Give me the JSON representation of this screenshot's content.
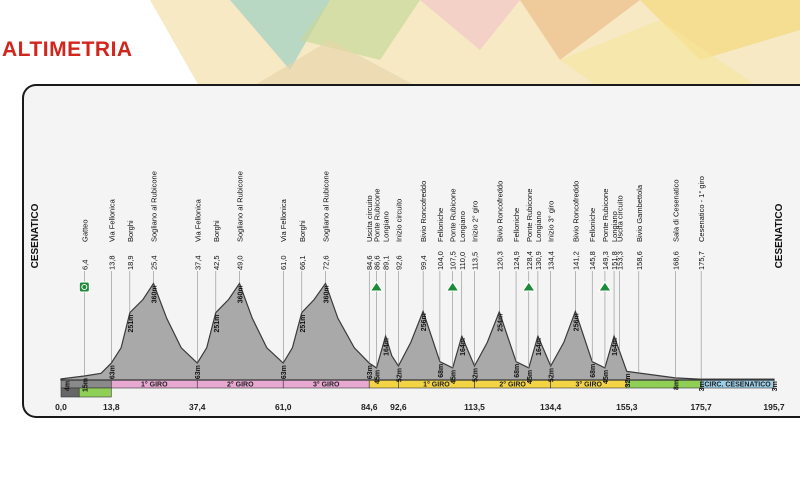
{
  "header": {
    "title": "ALTIMETRIA",
    "colors": {
      "title": "#d0261e",
      "panel_background": "#f4f4f4",
      "profile_fill": "#a9a9a9",
      "profile_stroke": "#3a3a3a"
    }
  },
  "chart_data": {
    "type": "area",
    "start_label": "CESENATICO",
    "end_label": "CESENATICO",
    "xlim": [
      0,
      195.7
    ],
    "km_axis_ticks": [
      {
        "km": 0,
        "label": "0,0"
      },
      {
        "km": 13.8,
        "label": "13,8"
      },
      {
        "km": 37.4,
        "label": "37,4"
      },
      {
        "km": 61.0,
        "label": "61,0"
      },
      {
        "km": 84.6,
        "label": "84,6"
      },
      {
        "km": 92.6,
        "label": "92,6"
      },
      {
        "km": 113.5,
        "label": "113,5"
      },
      {
        "km": 134.4,
        "label": "134,4"
      },
      {
        "km": 155.3,
        "label": "155,3"
      },
      {
        "km": 175.7,
        "label": "175,7"
      },
      {
        "km": 195.7,
        "label": "195,7"
      }
    ],
    "profile": [
      {
        "km": 0,
        "alt": 4
      },
      {
        "km": 6.4,
        "alt": 15
      },
      {
        "km": 11,
        "alt": 25
      },
      {
        "km": 13.8,
        "alt": 63
      },
      {
        "km": 16.5,
        "alt": 120
      },
      {
        "km": 18.9,
        "alt": 251
      },
      {
        "km": 22.5,
        "alt": 300
      },
      {
        "km": 25.4,
        "alt": 360
      },
      {
        "km": 29,
        "alt": 230
      },
      {
        "km": 33,
        "alt": 120
      },
      {
        "km": 37.4,
        "alt": 63
      },
      {
        "km": 40,
        "alt": 120
      },
      {
        "km": 42.5,
        "alt": 251
      },
      {
        "km": 46,
        "alt": 300
      },
      {
        "km": 49.0,
        "alt": 360
      },
      {
        "km": 52.5,
        "alt": 230
      },
      {
        "km": 56.5,
        "alt": 120
      },
      {
        "km": 61.0,
        "alt": 63
      },
      {
        "km": 63.5,
        "alt": 120
      },
      {
        "km": 66.1,
        "alt": 251
      },
      {
        "km": 69.5,
        "alt": 300
      },
      {
        "km": 72.6,
        "alt": 360
      },
      {
        "km": 76,
        "alt": 230
      },
      {
        "km": 80.5,
        "alt": 120
      },
      {
        "km": 84.6,
        "alt": 63
      },
      {
        "km": 86.6,
        "alt": 45
      },
      {
        "km": 89.1,
        "alt": 164
      },
      {
        "km": 90.8,
        "alt": 90
      },
      {
        "km": 92.6,
        "alt": 52
      },
      {
        "km": 96,
        "alt": 140
      },
      {
        "km": 99.4,
        "alt": 256
      },
      {
        "km": 104.0,
        "alt": 68
      },
      {
        "km": 107.5,
        "alt": 45
      },
      {
        "km": 110.0,
        "alt": 164
      },
      {
        "km": 113.5,
        "alt": 52
      },
      {
        "km": 117,
        "alt": 140
      },
      {
        "km": 120.3,
        "alt": 254
      },
      {
        "km": 124.9,
        "alt": 68
      },
      {
        "km": 128.4,
        "alt": 45
      },
      {
        "km": 130.9,
        "alt": 164
      },
      {
        "km": 134.4,
        "alt": 52
      },
      {
        "km": 138,
        "alt": 140
      },
      {
        "km": 141.2,
        "alt": 256
      },
      {
        "km": 145.8,
        "alt": 68
      },
      {
        "km": 149.3,
        "alt": 45
      },
      {
        "km": 151.8,
        "alt": 164
      },
      {
        "km": 155.3,
        "alt": 32
      },
      {
        "km": 168.6,
        "alt": 8
      },
      {
        "km": 175.7,
        "alt": 3
      },
      {
        "km": 195.7,
        "alt": 3
      }
    ],
    "altitude_labels": [
      {
        "km": 1.5,
        "label": "4m"
      },
      {
        "km": 6.4,
        "label": "15m"
      },
      {
        "km": 13.8,
        "label": "63m"
      },
      {
        "km": 18.9,
        "label": "251m"
      },
      {
        "km": 25.4,
        "label": "360m"
      },
      {
        "km": 37.4,
        "label": "63m"
      },
      {
        "km": 42.5,
        "label": "251m"
      },
      {
        "km": 49.0,
        "label": "360m"
      },
      {
        "km": 61.0,
        "label": "63m"
      },
      {
        "km": 66.1,
        "label": "251m"
      },
      {
        "km": 72.6,
        "label": "360m"
      },
      {
        "km": 84.6,
        "label": "63m"
      },
      {
        "km": 86.6,
        "label": "45m"
      },
      {
        "km": 89.1,
        "label": "164m"
      },
      {
        "km": 92.6,
        "label": "52m"
      },
      {
        "km": 99.4,
        "label": "256m"
      },
      {
        "km": 104.0,
        "label": "68m"
      },
      {
        "km": 107.5,
        "label": "45m"
      },
      {
        "km": 110.0,
        "label": "164m"
      },
      {
        "km": 113.5,
        "label": "52m"
      },
      {
        "km": 120.3,
        "label": "254m"
      },
      {
        "km": 124.9,
        "label": "68m"
      },
      {
        "km": 128.4,
        "label": "45m"
      },
      {
        "km": 130.9,
        "label": "164m"
      },
      {
        "km": 134.4,
        "label": "52m"
      },
      {
        "km": 141.2,
        "label": "256m"
      },
      {
        "km": 145.8,
        "label": "68m"
      },
      {
        "km": 149.3,
        "label": "45m"
      },
      {
        "km": 151.8,
        "label": "164m"
      },
      {
        "km": 155.3,
        "label": "32m"
      },
      {
        "km": 168.6,
        "label": "8m"
      },
      {
        "km": 175.7,
        "label": "3m"
      },
      {
        "km": 195.7,
        "label": "3m"
      }
    ],
    "waypoints": [
      {
        "km": 6.4,
        "km_label": "6,4",
        "name": "Gatteo"
      },
      {
        "km": 13.8,
        "km_label": "13,8",
        "name": "Via Fellonica"
      },
      {
        "km": 18.9,
        "km_label": "18,9",
        "name": "Borghi"
      },
      {
        "km": 25.4,
        "km_label": "25,4",
        "name": "Sogliano al Rubicone"
      },
      {
        "km": 37.4,
        "km_label": "37,4",
        "name": "Via Fellonica"
      },
      {
        "km": 42.5,
        "km_label": "42,5",
        "name": "Borghi"
      },
      {
        "km": 49.0,
        "km_label": "49,0",
        "name": "Sogliano al Rubicone"
      },
      {
        "km": 61.0,
        "km_label": "61,0",
        "name": "Via Fellonica"
      },
      {
        "km": 66.1,
        "km_label": "66,1",
        "name": "Borghi"
      },
      {
        "km": 72.6,
        "km_label": "72,6",
        "name": "Sogliano al Rubicone"
      },
      {
        "km": 84.6,
        "km_label": "84,6",
        "name": "Uscita circuito"
      },
      {
        "km": 86.6,
        "km_label": "86,6",
        "name": "Ponte Rubicone"
      },
      {
        "km": 89.1,
        "km_label": "89,1",
        "name": "Longiano"
      },
      {
        "km": 92.6,
        "km_label": "92,6",
        "name": "Inizio circuito"
      },
      {
        "km": 99.4,
        "km_label": "99,4",
        "name": "Bivio Roncofreddo"
      },
      {
        "km": 104.0,
        "km_label": "104,0",
        "name": "Felloniche"
      },
      {
        "km": 107.5,
        "km_label": "107,5",
        "name": "Ponte Rubicone"
      },
      {
        "km": 110.0,
        "km_label": "110,0",
        "name": "Longiano"
      },
      {
        "km": 113.5,
        "km_label": "113,5",
        "name": "Inizio 2° giro"
      },
      {
        "km": 120.3,
        "km_label": "120,3",
        "name": "Bivio Roncofreddo"
      },
      {
        "km": 124.9,
        "km_label": "124,9",
        "name": "Felloniche"
      },
      {
        "km": 128.4,
        "km_label": "128,4",
        "name": "Ponte Rubicone"
      },
      {
        "km": 130.9,
        "km_label": "130,9",
        "name": "Longiano"
      },
      {
        "km": 134.4,
        "km_label": "134,4",
        "name": "Inizio 3° giro"
      },
      {
        "km": 141.2,
        "km_label": "141,2",
        "name": "Bivio Roncofreddo"
      },
      {
        "km": 145.8,
        "km_label": "145,8",
        "name": "Felloniche"
      },
      {
        "km": 149.3,
        "km_label": "149,3",
        "name": "Ponte Rubicone"
      },
      {
        "km": 151.8,
        "km_label": "151,8",
        "name": "Longiano"
      },
      {
        "km": 153.3,
        "km_label": "153,3",
        "name": "Uscita circuito"
      },
      {
        "km": 158.6,
        "km_label": "158,6",
        "name": "Bivio Gambettola"
      },
      {
        "km": 168.6,
        "km_label": "168,6",
        "name": "Sala di Cesenatico"
      },
      {
        "km": 175.7,
        "km_label": "175,7",
        "name": "Cesenatico - 1° giro"
      }
    ],
    "segments": [
      {
        "from": 0,
        "to": 13.8,
        "label": "",
        "color": "#8a8a8a"
      },
      {
        "from": 13.8,
        "to": 37.4,
        "label": "1° GIRO",
        "color": "#e7a8d2"
      },
      {
        "from": 37.4,
        "to": 61.0,
        "label": "2° GIRO",
        "color": "#e7a8d2"
      },
      {
        "from": 61.0,
        "to": 84.6,
        "label": "3° GIRO",
        "color": "#e7a8d2"
      },
      {
        "from": 84.6,
        "to": 92.6,
        "label": "",
        "color": "#f2d445"
      },
      {
        "from": 92.6,
        "to": 113.5,
        "label": "1° GIRO",
        "color": "#f2d445"
      },
      {
        "from": 113.5,
        "to": 134.4,
        "label": "2° GIRO",
        "color": "#f2d445"
      },
      {
        "from": 134.4,
        "to": 155.3,
        "label": "3° GIRO",
        "color": "#f2d445"
      },
      {
        "from": 155.3,
        "to": 175.7,
        "label": "",
        "color": "#8fcf55"
      },
      {
        "from": 175.7,
        "to": 195.7,
        "label": "CIRC. CESENATICO",
        "color": "#9ccfe8"
      }
    ],
    "lower_band": [
      {
        "from": 0,
        "to": 5,
        "color": "#666666"
      },
      {
        "from": 5,
        "to": 13.8,
        "color": "#8fcf55"
      }
    ],
    "markers": [
      {
        "km": 6.4,
        "type": "intermediate-sprint"
      },
      {
        "km": 86.6,
        "type": "feed-zone"
      },
      {
        "km": 107.5,
        "type": "feed-zone"
      },
      {
        "km": 128.4,
        "type": "feed-zone"
      },
      {
        "km": 149.3,
        "type": "feed-zone"
      }
    ]
  }
}
